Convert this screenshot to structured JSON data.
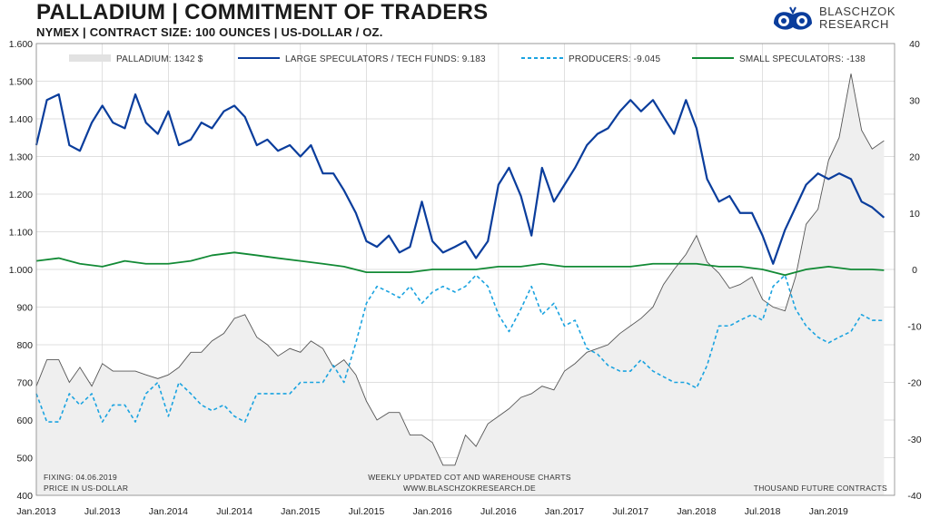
{
  "header": {
    "title": "PALLADIUM | COMMITMENT OF TRADERS",
    "subtitle": "NYMEX | CONTRACT SIZE: 100 OUNCES | US-DOLLAR / OZ."
  },
  "logo": {
    "line1": "BLASCHZOK",
    "line2": "RESEARCH"
  },
  "footer": {
    "fixing": "FIXING: 04.06.2019",
    "price_unit": "PRICE IN US-DOLLAR",
    "center1": "WEEKLY UPDATED COT AND WAREHOUSE CHARTS",
    "center2": "WWW.BLASCHZOKRESEARCH.DE",
    "right": "THOUSAND FUTURE CONTRACTS"
  },
  "colors": {
    "area": "#efefef",
    "area_line": "#555555",
    "large": "#0a3d9c",
    "producers": "#1aa3e0",
    "small": "#128a35",
    "grid": "#d4d4d4"
  },
  "chart_data": {
    "type": "line",
    "title": "PALLADIUM | COMMITMENT OF TRADERS",
    "subtitle": "NYMEX | CONTRACT SIZE: 100 OUNCES | US-DOLLAR / OZ.",
    "x_ticks": [
      "Jan.2013",
      "Jul.2013",
      "Jan.2014",
      "Jul.2014",
      "Jan.2015",
      "Jul.2015",
      "Jan.2016",
      "Jul.2016",
      "Jan.2017",
      "Jul.2017",
      "Jan.2018",
      "Jul.2018",
      "Jan.2019"
    ],
    "x_range": [
      "2013-01",
      "2019-06"
    ],
    "y_left": {
      "label": "PRICE IN US-DOLLAR",
      "lim": [
        400,
        1600
      ],
      "ticks": [
        "400",
        "500",
        "600",
        "700",
        "800",
        "900",
        "1.000",
        "1.100",
        "1.200",
        "1.300",
        "1.400",
        "1.500",
        "1.600"
      ]
    },
    "y_right": {
      "label": "THOUSAND FUTURE CONTRACTS",
      "lim": [
        -40,
        40
      ],
      "ticks": [
        "-40",
        "-30",
        "-20",
        "-10",
        "0",
        "10",
        "20",
        "30",
        "40"
      ]
    },
    "grid": true,
    "legend_position": "top",
    "series": [
      {
        "name": "PALLADIUM: 1342 $",
        "axis": "left",
        "style": "area",
        "x": [
          2013.0,
          2013.08,
          2013.17,
          2013.25,
          2013.33,
          2013.42,
          2013.5,
          2013.58,
          2013.67,
          2013.75,
          2013.83,
          2013.92,
          2014.0,
          2014.08,
          2014.17,
          2014.25,
          2014.33,
          2014.42,
          2014.5,
          2014.58,
          2014.67,
          2014.75,
          2014.83,
          2014.92,
          2015.0,
          2015.08,
          2015.17,
          2015.25,
          2015.33,
          2015.42,
          2015.5,
          2015.58,
          2015.67,
          2015.75,
          2015.83,
          2015.92,
          2016.0,
          2016.08,
          2016.17,
          2016.25,
          2016.33,
          2016.42,
          2016.5,
          2016.58,
          2016.67,
          2016.75,
          2016.83,
          2016.92,
          2017.0,
          2017.08,
          2017.17,
          2017.25,
          2017.33,
          2017.42,
          2017.5,
          2017.58,
          2017.67,
          2017.75,
          2017.83,
          2017.92,
          2018.0,
          2018.08,
          2018.17,
          2018.25,
          2018.33,
          2018.42,
          2018.5,
          2018.58,
          2018.67,
          2018.75,
          2018.83,
          2018.92,
          2019.0,
          2019.08,
          2019.17,
          2019.25,
          2019.33,
          2019.42
        ],
        "y": [
          690,
          760,
          760,
          700,
          740,
          690,
          750,
          730,
          730,
          730,
          720,
          710,
          720,
          740,
          780,
          780,
          810,
          830,
          870,
          880,
          820,
          800,
          770,
          790,
          780,
          810,
          790,
          740,
          760,
          720,
          650,
          600,
          620,
          620,
          560,
          560,
          540,
          480,
          480,
          560,
          530,
          590,
          610,
          630,
          660,
          670,
          690,
          680,
          730,
          750,
          780,
          790,
          800,
          830,
          850,
          870,
          900,
          960,
          1000,
          1040,
          1090,
          1020,
          990,
          950,
          960,
          980,
          920,
          900,
          890,
          980,
          1120,
          1160,
          1290,
          1350,
          1520,
          1370,
          1320,
          1342
        ]
      },
      {
        "name": "LARGE SPECULATORS / TECH FUNDS: 9.183",
        "axis": "right",
        "style": "solid",
        "x": [
          2013.0,
          2013.08,
          2013.17,
          2013.25,
          2013.33,
          2013.42,
          2013.5,
          2013.58,
          2013.67,
          2013.75,
          2013.83,
          2013.92,
          2014.0,
          2014.08,
          2014.17,
          2014.25,
          2014.33,
          2014.42,
          2014.5,
          2014.58,
          2014.67,
          2014.75,
          2014.83,
          2014.92,
          2015.0,
          2015.08,
          2015.17,
          2015.25,
          2015.33,
          2015.42,
          2015.5,
          2015.58,
          2015.67,
          2015.75,
          2015.83,
          2015.92,
          2016.0,
          2016.08,
          2016.17,
          2016.25,
          2016.33,
          2016.42,
          2016.5,
          2016.58,
          2016.67,
          2016.75,
          2016.83,
          2016.92,
          2017.0,
          2017.08,
          2017.17,
          2017.25,
          2017.33,
          2017.42,
          2017.5,
          2017.58,
          2017.67,
          2017.75,
          2017.83,
          2017.92,
          2018.0,
          2018.08,
          2018.17,
          2018.25,
          2018.33,
          2018.42,
          2018.5,
          2018.58,
          2018.67,
          2018.75,
          2018.83,
          2018.92,
          2019.0,
          2019.08,
          2019.17,
          2019.25,
          2019.33,
          2019.42
        ],
        "y": [
          22,
          30,
          31,
          22,
          21,
          26,
          29,
          26,
          25,
          31,
          26,
          24,
          28,
          22,
          23,
          26,
          25,
          28,
          29,
          27,
          22,
          23,
          21,
          22,
          20,
          22,
          17,
          17,
          14,
          10,
          5,
          4,
          6,
          3,
          4,
          12,
          5,
          3,
          4,
          5,
          2,
          5,
          15,
          18,
          13,
          6,
          18,
          12,
          15,
          18,
          22,
          24,
          25,
          28,
          30,
          28,
          30,
          27,
          24,
          30,
          25,
          16,
          12,
          13,
          10,
          10,
          6,
          1,
          7,
          11,
          15,
          17,
          16,
          17,
          16,
          12,
          11,
          9.183
        ]
      },
      {
        "name": "PRODUCERS: -9.045",
        "axis": "right",
        "style": "dashed",
        "x": [
          2013.0,
          2013.08,
          2013.17,
          2013.25,
          2013.33,
          2013.42,
          2013.5,
          2013.58,
          2013.67,
          2013.75,
          2013.83,
          2013.92,
          2014.0,
          2014.08,
          2014.17,
          2014.25,
          2014.33,
          2014.42,
          2014.5,
          2014.58,
          2014.67,
          2014.75,
          2014.83,
          2014.92,
          2015.0,
          2015.08,
          2015.17,
          2015.25,
          2015.33,
          2015.42,
          2015.5,
          2015.58,
          2015.67,
          2015.75,
          2015.83,
          2015.92,
          2016.0,
          2016.08,
          2016.17,
          2016.25,
          2016.33,
          2016.42,
          2016.5,
          2016.58,
          2016.67,
          2016.75,
          2016.83,
          2016.92,
          2017.0,
          2017.08,
          2017.17,
          2017.25,
          2017.33,
          2017.42,
          2017.5,
          2017.58,
          2017.67,
          2017.75,
          2017.83,
          2017.92,
          2018.0,
          2018.08,
          2018.17,
          2018.25,
          2018.33,
          2018.42,
          2018.5,
          2018.58,
          2018.67,
          2018.75,
          2018.83,
          2018.92,
          2019.0,
          2019.08,
          2019.17,
          2019.25,
          2019.33,
          2019.42
        ],
        "y": [
          -22,
          -27,
          -27,
          -22,
          -24,
          -22,
          -27,
          -24,
          -24,
          -27,
          -22,
          -20,
          -26,
          -20,
          -22,
          -24,
          -25,
          -24,
          -26,
          -27,
          -22,
          -22,
          -22,
          -22,
          -20,
          -20,
          -20,
          -17,
          -20,
          -13,
          -6,
          -3,
          -4,
          -5,
          -3,
          -6,
          -4,
          -3,
          -4,
          -3,
          -1,
          -3,
          -8,
          -11,
          -7,
          -3,
          -8,
          -6,
          -10,
          -9,
          -14,
          -15,
          -17,
          -18,
          -18,
          -16,
          -18,
          -19,
          -20,
          -20,
          -21,
          -17,
          -10,
          -10,
          -9,
          -8,
          -9,
          -3,
          -1,
          -7,
          -10,
          -12,
          -13,
          -12,
          -11,
          -8,
          -9,
          -9.045
        ]
      },
      {
        "name": "SMALL SPECULATORS: -138",
        "axis": "right",
        "style": "solid",
        "x": [
          2013.0,
          2013.17,
          2013.33,
          2013.5,
          2013.67,
          2013.83,
          2014.0,
          2014.17,
          2014.33,
          2014.5,
          2014.67,
          2014.83,
          2015.0,
          2015.17,
          2015.33,
          2015.5,
          2015.67,
          2015.83,
          2016.0,
          2016.17,
          2016.33,
          2016.5,
          2016.67,
          2016.83,
          2017.0,
          2017.17,
          2017.33,
          2017.5,
          2017.67,
          2017.83,
          2018.0,
          2018.17,
          2018.33,
          2018.5,
          2018.67,
          2018.83,
          2019.0,
          2019.17,
          2019.33,
          2019.42
        ],
        "y": [
          1.5,
          2,
          1,
          0.5,
          1.5,
          1,
          1,
          1.5,
          2.5,
          3,
          2.5,
          2,
          1.5,
          1,
          0.5,
          -0.5,
          -0.5,
          -0.5,
          0,
          0,
          0,
          0.5,
          0.5,
          1,
          0.5,
          0.5,
          0.5,
          0.5,
          1,
          1,
          1,
          0.5,
          0.5,
          0,
          -1,
          0,
          0.5,
          0,
          0,
          -0.138
        ]
      }
    ]
  }
}
